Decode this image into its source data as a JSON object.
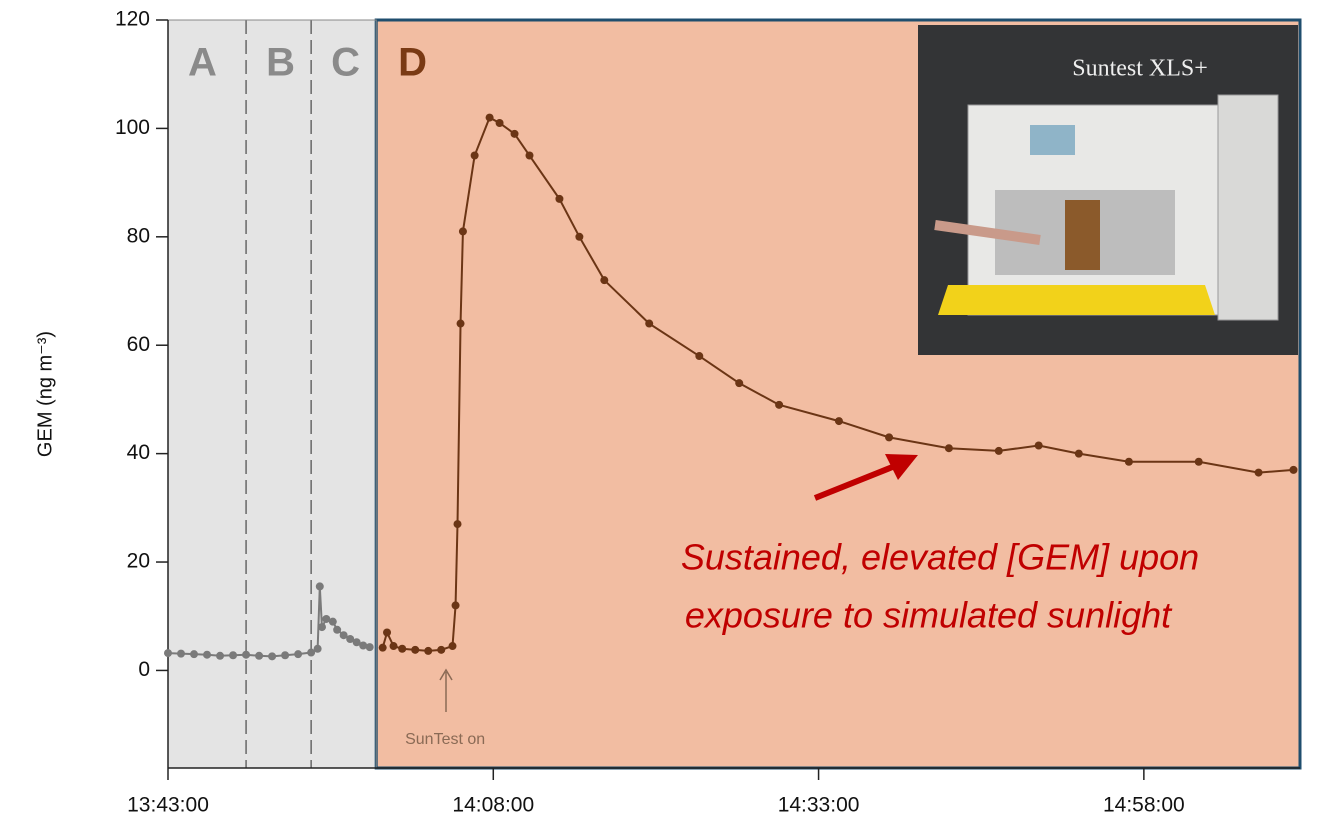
{
  "chart_data": {
    "type": "line",
    "y_label": "GEM (ng m⁻³)",
    "xlim": [
      "13:43:00",
      "15:10:00"
    ],
    "xticks": [
      "13:43:00",
      "14:08:00",
      "14:33:00",
      "14:58:00"
    ],
    "ylim": [
      -18,
      120
    ],
    "yticks": [
      0,
      20,
      40,
      60,
      80,
      100,
      120
    ],
    "regions": [
      {
        "label": "A",
        "start": "13:43:00",
        "end": "13:49:00",
        "color": "#e4e4e4",
        "label_color": "#8a8a8a"
      },
      {
        "label": "B",
        "start": "13:49:00",
        "end": "13:54:00",
        "color": "#e4e4e4",
        "label_color": "#8a8a8a"
      },
      {
        "label": "C",
        "start": "13:54:00",
        "end": "13:59:00",
        "color": "#e4e4e4",
        "label_color": "#8a8a8a"
      },
      {
        "label": "D",
        "start": "13:59:00",
        "end": "15:10:00",
        "color": "#f2bda2",
        "label_color": "#7a3a14"
      }
    ],
    "series": [
      {
        "color": "#7a7a7a",
        "x": [
          "13:43:00",
          "13:44:00",
          "13:45:00",
          "13:46:00",
          "13:47:00",
          "13:48:00",
          "13:49:00",
          "13:50:00",
          "13:51:00",
          "13:52:00",
          "13:53:00",
          "13:54:00",
          "13:54:30",
          "13:54:40",
          "13:54:50",
          "13:55:10",
          "13:55:40",
          "13:56:00",
          "13:56:30",
          "13:57:00",
          "13:57:30",
          "13:58:00",
          "13:58:30"
        ],
        "values": [
          3.2,
          3.1,
          3.0,
          2.9,
          2.7,
          2.8,
          2.9,
          2.7,
          2.6,
          2.8,
          3.0,
          3.3,
          4.0,
          15.5,
          8.0,
          9.5,
          9.0,
          7.5,
          6.5,
          5.8,
          5.2,
          4.6,
          4.3
        ]
      },
      {
        "color": "#6b3515",
        "x": [
          "13:59:30",
          "13:59:50",
          "14:00:20",
          "14:01:00",
          "14:02:00",
          "14:03:00",
          "14:04:00",
          "14:04:52",
          "14:05:06",
          "14:05:15",
          "14:05:29",
          "14:05:40",
          "14:06:34",
          "14:07:43",
          "14:08:29",
          "14:09:38",
          "14:10:47",
          "14:13:05",
          "14:14:37",
          "14:16:32",
          "14:19:59",
          "14:23:50",
          "14:26:54",
          "14:29:58",
          "14:34:34",
          "14:38:25",
          "14:43:01",
          "14:46:51",
          "14:49:55",
          "14:53:00",
          "14:56:51",
          "15:02:13",
          "15:06:49",
          "15:09:30"
        ],
        "values": [
          4.2,
          7.0,
          4.5,
          4.0,
          3.8,
          3.6,
          3.8,
          4.5,
          12,
          27,
          64,
          81,
          95,
          102,
          101,
          99,
          95,
          87,
          80,
          72,
          64,
          58,
          53,
          49,
          46,
          43,
          41,
          40.5,
          41.5,
          40,
          38.5,
          38.5,
          36.5,
          37
        ]
      }
    ],
    "annotations": [
      {
        "text": "SunTest on",
        "x": "14:04:18"
      },
      {
        "text": "Sustained, elevated [GEM] upon"
      },
      {
        "text": "exposure to simulated sunlight"
      }
    ],
    "inset_title": "Suntest XLS+"
  }
}
